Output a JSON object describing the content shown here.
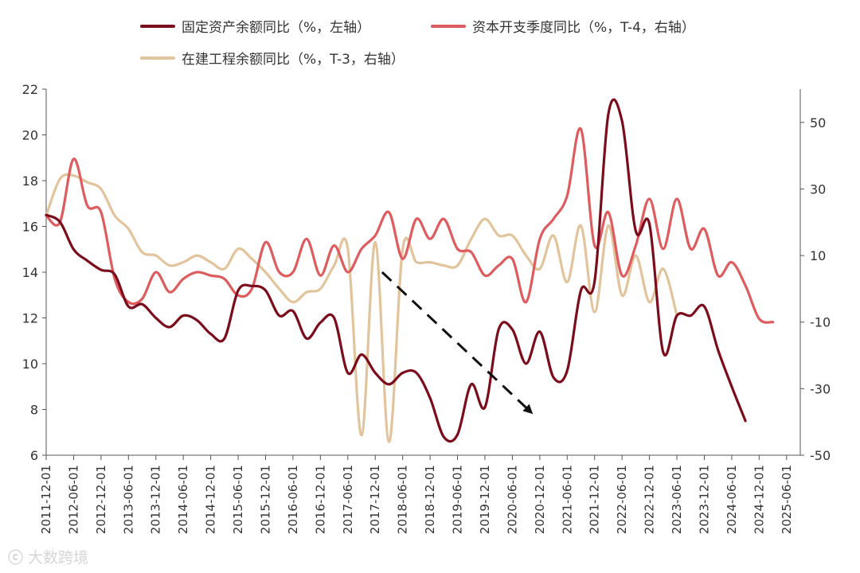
{
  "chart_data": {
    "type": "line",
    "legend": [
      {
        "name": "固定资产余额同比（%，左轴）",
        "color": "#7b0c1c"
      },
      {
        "name": "资本开支季度同比（%，T-4，右轴）",
        "color": "#de5b5e"
      },
      {
        "name": "在建工程余额同比（%，T-3，右轴）",
        "color": "#e2c49c"
      }
    ],
    "y_left": {
      "min": 6,
      "max": 22,
      "ticks": [
        6,
        8,
        10,
        12,
        14,
        16,
        18,
        20,
        22
      ]
    },
    "y_right": {
      "min": -50,
      "max": 60,
      "ticks": [
        -50,
        -30,
        -10,
        10,
        30,
        50
      ]
    },
    "x_ticks": [
      "2011-12-01",
      "2012-06-01",
      "2012-12-01",
      "2013-06-01",
      "2013-12-01",
      "2014-06-01",
      "2014-12-01",
      "2015-06-01",
      "2015-12-01",
      "2016-06-01",
      "2016-12-01",
      "2017-06-01",
      "2017-12-01",
      "2018-06-01",
      "2018-12-01",
      "2019-06-01",
      "2019-12-01",
      "2020-06-01",
      "2020-12-01",
      "2021-06-01",
      "2021-12-01",
      "2022-06-01",
      "2022-12-01",
      "2023-06-01",
      "2023-12-01",
      "2024-06-01",
      "2024-12-01",
      "2025-06-01"
    ],
    "series": [
      {
        "name": "固定资产余额同比（%，左轴）",
        "axis": "left",
        "color": "#7b0c1c",
        "points": [
          [
            0,
            16.5
          ],
          [
            1,
            16.2
          ],
          [
            2,
            15.0
          ],
          [
            3,
            14.5
          ],
          [
            4,
            14.1
          ],
          [
            5,
            13.9
          ],
          [
            6,
            12.5
          ],
          [
            7,
            12.6
          ],
          [
            8,
            12.0
          ],
          [
            9,
            11.6
          ],
          [
            10,
            12.1
          ],
          [
            11,
            11.9
          ],
          [
            12,
            11.3
          ],
          [
            13,
            11.1
          ],
          [
            14,
            13.2
          ],
          [
            15,
            13.4
          ],
          [
            16,
            13.2
          ],
          [
            17,
            12.1
          ],
          [
            18,
            12.3
          ],
          [
            19,
            11.1
          ],
          [
            20,
            11.8
          ],
          [
            21,
            12.0
          ],
          [
            22,
            9.6
          ],
          [
            23,
            10.4
          ],
          [
            24,
            9.6
          ],
          [
            25,
            9.1
          ],
          [
            26,
            9.6
          ],
          [
            27,
            9.6
          ],
          [
            28,
            8.5
          ],
          [
            29,
            6.8
          ],
          [
            30,
            6.9
          ],
          [
            31,
            9.1
          ],
          [
            32,
            8.1
          ],
          [
            33,
            11.5
          ],
          [
            34,
            11.5
          ],
          [
            35,
            10.0
          ],
          [
            36,
            11.4
          ],
          [
            37,
            9.4
          ],
          [
            38,
            9.7
          ],
          [
            39,
            13.2
          ],
          [
            40,
            13.6
          ],
          [
            41,
            20.9
          ],
          [
            42,
            20.6
          ],
          [
            43,
            15.8
          ],
          [
            44,
            16.1
          ],
          [
            45,
            10.5
          ],
          [
            46,
            12.1
          ],
          [
            47,
            12.1
          ],
          [
            48,
            12.5
          ],
          [
            49,
            10.6
          ],
          [
            50,
            9.0
          ],
          [
            51,
            7.5
          ]
        ]
      },
      {
        "name": "资本开支季度同比（%，T-4，右轴）",
        "axis": "right",
        "color": "#de5b5e",
        "points": [
          [
            0,
            22
          ],
          [
            1,
            20
          ],
          [
            2,
            39
          ],
          [
            3,
            25
          ],
          [
            4,
            23
          ],
          [
            5,
            3
          ],
          [
            6,
            -4
          ],
          [
            7,
            -3
          ],
          [
            8,
            5
          ],
          [
            9,
            -1
          ],
          [
            10,
            3
          ],
          [
            11,
            5
          ],
          [
            12,
            4
          ],
          [
            13,
            3
          ],
          [
            14,
            -2
          ],
          [
            15,
            0
          ],
          [
            16,
            14
          ],
          [
            17,
            5
          ],
          [
            18,
            5
          ],
          [
            19,
            15
          ],
          [
            20,
            4
          ],
          [
            21,
            13
          ],
          [
            22,
            5
          ],
          [
            23,
            12
          ],
          [
            24,
            16
          ],
          [
            25,
            23
          ],
          [
            26,
            9
          ],
          [
            27,
            21
          ],
          [
            28,
            15
          ],
          [
            29,
            21
          ],
          [
            30,
            12
          ],
          [
            31,
            11
          ],
          [
            32,
            4
          ],
          [
            33,
            7
          ],
          [
            34,
            9
          ],
          [
            35,
            -4
          ],
          [
            36,
            15
          ],
          [
            37,
            21
          ],
          [
            38,
            28
          ],
          [
            39,
            48
          ],
          [
            40,
            13
          ],
          [
            41,
            23
          ],
          [
            42,
            4
          ],
          [
            43,
            13
          ],
          [
            44,
            27
          ],
          [
            45,
            12
          ],
          [
            46,
            27
          ],
          [
            47,
            12
          ],
          [
            48,
            18
          ],
          [
            49,
            4
          ],
          [
            50,
            8
          ],
          [
            51,
            1
          ],
          [
            52,
            -9
          ],
          [
            53,
            -10
          ]
        ]
      },
      {
        "name": "在建工程余额同比（%，T-3，右轴）",
        "axis": "right",
        "color": "#e2c49c",
        "points": [
          [
            0,
            22
          ],
          [
            1,
            33
          ],
          [
            2,
            34
          ],
          [
            3,
            32
          ],
          [
            4,
            30
          ],
          [
            5,
            22
          ],
          [
            6,
            18
          ],
          [
            7,
            11
          ],
          [
            8,
            10
          ],
          [
            9,
            7
          ],
          [
            10,
            8
          ],
          [
            11,
            10
          ],
          [
            12,
            8
          ],
          [
            13,
            6
          ],
          [
            14,
            12
          ],
          [
            15,
            9
          ],
          [
            16,
            5
          ],
          [
            17,
            0
          ],
          [
            18,
            -4
          ],
          [
            19,
            -1
          ],
          [
            20,
            0
          ],
          [
            21,
            7
          ],
          [
            22,
            12
          ],
          [
            23,
            -44
          ],
          [
            24,
            14
          ],
          [
            25,
            -46
          ],
          [
            26,
            12
          ],
          [
            27,
            8
          ],
          [
            28,
            8
          ],
          [
            29,
            7
          ],
          [
            30,
            7
          ],
          [
            31,
            15
          ],
          [
            32,
            21
          ],
          [
            33,
            16
          ],
          [
            34,
            16
          ],
          [
            35,
            10
          ],
          [
            36,
            6
          ],
          [
            37,
            16
          ],
          [
            38,
            2
          ],
          [
            39,
            19
          ],
          [
            40,
            -7
          ],
          [
            41,
            19
          ],
          [
            42,
            -2
          ],
          [
            43,
            10
          ],
          [
            44,
            -4
          ],
          [
            45,
            6
          ],
          [
            46,
            -8
          ]
        ]
      }
    ],
    "annotation": {
      "type": "dashed-arrow",
      "from": [
        24.5,
        14.0
      ],
      "to": [
        35.5,
        7.8
      ],
      "axis": "left"
    }
  },
  "watermark": "大数跨境"
}
